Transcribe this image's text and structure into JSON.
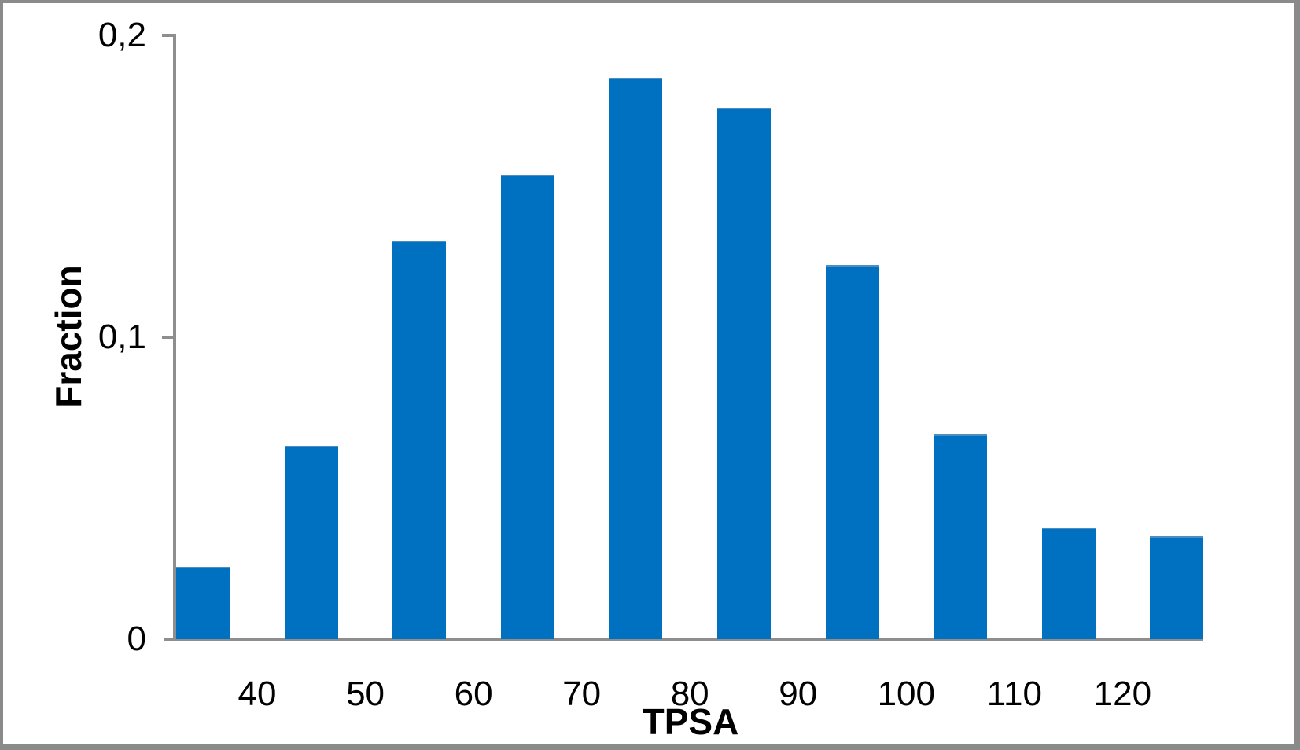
{
  "figure": {
    "background_color": "#ffffff",
    "border_color": "#8a8a8a",
    "axis_color": "#8e8e8e",
    "bar_color": "#0070C0",
    "text_color": "#000000"
  },
  "chart_data": {
    "type": "bar",
    "title": "",
    "xlabel": "TPSA",
    "ylabel": "Fraction",
    "bin_width": 10,
    "bin_centers": [
      35,
      45,
      55,
      65,
      75,
      85,
      95,
      105,
      115,
      125
    ],
    "values": [
      0.024,
      0.064,
      0.132,
      0.154,
      0.186,
      0.176,
      0.124,
      0.068,
      0.037,
      0.034
    ],
    "x_tick_values": [
      40,
      50,
      60,
      70,
      80,
      90,
      100,
      110,
      120
    ],
    "x_tick_labels": [
      "40",
      "50",
      "60",
      "70",
      "80",
      "90",
      "100",
      "110",
      "120"
    ],
    "y_tick_values": [
      0,
      0.1,
      0.2
    ],
    "y_tick_labels": [
      "0",
      "0,1",
      "0,2"
    ],
    "xlim": [
      30,
      130
    ],
    "ylim": [
      0,
      0.2
    ],
    "grid": false,
    "legend_position": "none"
  }
}
